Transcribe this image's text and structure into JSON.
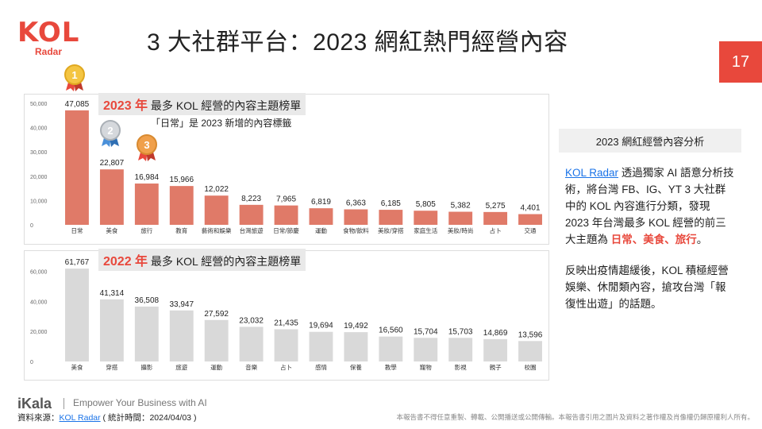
{
  "header": {
    "logo_main": "KOL",
    "logo_sub": "Radar",
    "title": "3 大社群平台：2023 網紅熱門經營內容",
    "page_number": "17"
  },
  "chart_data": [
    {
      "type": "bar",
      "title_year": "2023 年",
      "title_text": " 最多 KOL 經營的內容主題榜單",
      "note": "「日常」是 2023 新增的內容標籤",
      "categories": [
        "日常",
        "美食",
        "旅行",
        "教育",
        "藝術和娛樂",
        "台灣旅遊",
        "日常/節慶",
        "運動",
        "食物/飲料",
        "美妝/穿搭",
        "家庭生活",
        "美妝/時尚",
        "占卜",
        "交通"
      ],
      "values": [
        47085,
        22807,
        16984,
        15966,
        12022,
        8223,
        7965,
        6819,
        6363,
        6185,
        5805,
        5382,
        5275,
        4401
      ],
      "value_labels": [
        "47,085",
        "22,807",
        "16,984",
        "15,966",
        "12,022",
        "8,223",
        "7,965",
        "6,819",
        "6,363",
        "6,185",
        "5,805",
        "5,382",
        "5,275",
        "4,401"
      ],
      "yticks": [
        "0",
        "10,000",
        "20,000",
        "30,000",
        "40,000",
        "50,000"
      ],
      "ytick_values": [
        0,
        10000,
        20000,
        30000,
        40000,
        50000
      ],
      "ylim": [
        0,
        50000
      ],
      "bar_color": "#e07a68",
      "medals": [
        "1",
        "2",
        "3"
      ]
    },
    {
      "type": "bar",
      "title_year": "2022 年",
      "title_text": " 最多 KOL 經營的內容主題榜單",
      "categories": [
        "美食",
        "穿搭",
        "攝影",
        "旅遊",
        "運動",
        "音樂",
        "占卜",
        "感情",
        "保養",
        "教學",
        "寵物",
        "影視",
        "親子",
        "校園"
      ],
      "values": [
        61767,
        41314,
        36508,
        33947,
        27592,
        23032,
        21435,
        19694,
        19492,
        16560,
        15704,
        15703,
        14869,
        13596
      ],
      "value_labels": [
        "61,767",
        "41,314",
        "36,508",
        "33,947",
        "27,592",
        "23,032",
        "21,435",
        "19,694",
        "19,492",
        "16,560",
        "15,704",
        "15,703",
        "14,869",
        "13,596"
      ],
      "yticks": [
        "0",
        "20,000",
        "40,000",
        "60,000"
      ],
      "ytick_values": [
        0,
        20000,
        40000,
        60000
      ],
      "ylim": [
        0,
        65000
      ],
      "bar_color": "#d9d9d9"
    }
  ],
  "analysis": {
    "title": "2023 網紅經營內容分析",
    "p1_link": "KOL Radar",
    "p1_text": " 透過獨家 AI 語意分析技術，將台灣 FB、IG、YT 3 大社群中的 KOL 內容進行分類，發現 2023 年台灣最多 KOL 經營的前三大主題為 ",
    "p1_highlight": "日常、美食、旅行",
    "p1_end": "。",
    "p2": "反映出疫情趨緩後，KOL 積極經營娛樂、休閒類內容，搶攻台灣「報復性出遊」的話題。"
  },
  "footer": {
    "brand": "iKala",
    "tagline": "Empower Your Business with AI",
    "source_prefix": "資料來源：",
    "source_link": "KOL Radar",
    "source_suffix": " ( 統計時間：2024/04/03 )",
    "disclaimer": "本報告書不得任意重製、轉載、公開播送或公開傳輸。本報告書引用之圖片及資料之著作權及肖像權仍歸原權利人所有。"
  }
}
